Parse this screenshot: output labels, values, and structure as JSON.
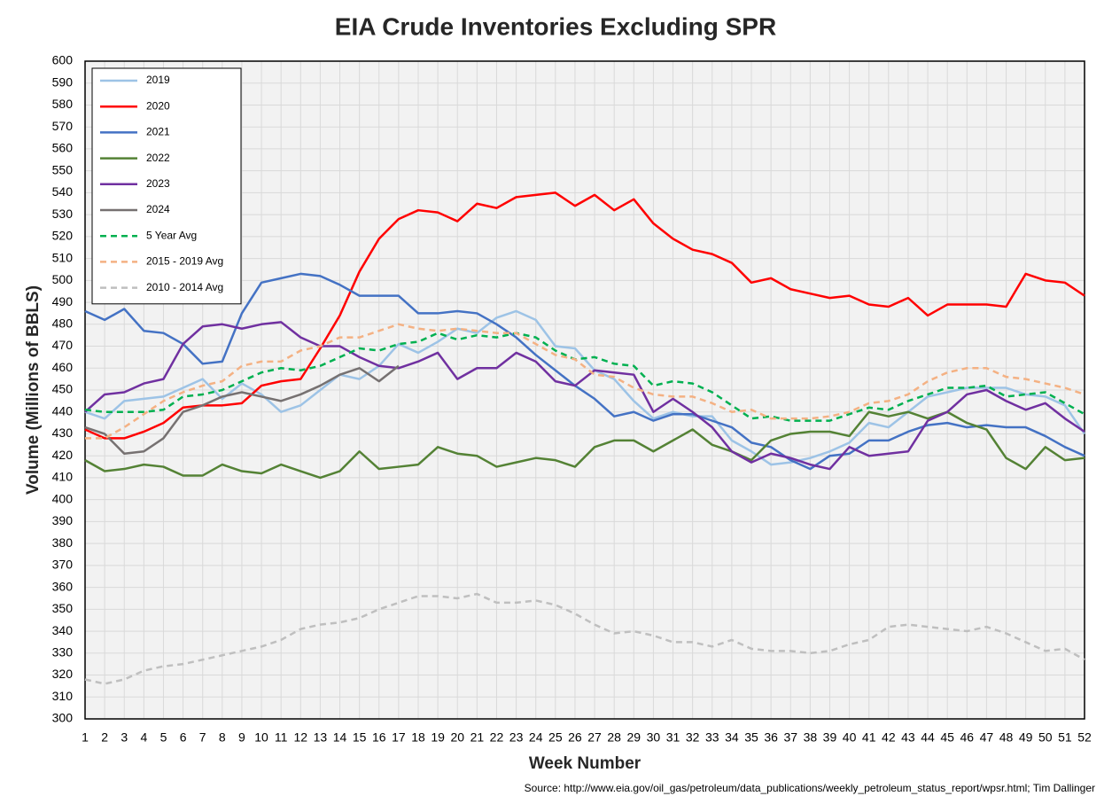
{
  "chart_data": {
    "type": "line",
    "title": "EIA Crude Inventories Excluding SPR",
    "x_label": "Week Number",
    "y_label": "Volume (Millions of BBLS)",
    "source": "Source: http://www.eia.gov/oil_gas/petroleum/data_publications/weekly_petroleum_status_report/wpsr.html; Tim Dallinger",
    "x": [
      1,
      2,
      3,
      4,
      5,
      6,
      7,
      8,
      9,
      10,
      11,
      12,
      13,
      14,
      15,
      16,
      17,
      18,
      19,
      20,
      21,
      22,
      23,
      24,
      25,
      26,
      27,
      28,
      29,
      30,
      31,
      32,
      33,
      34,
      35,
      36,
      37,
      38,
      39,
      40,
      41,
      42,
      43,
      44,
      45,
      46,
      47,
      48,
      49,
      50,
      51,
      52
    ],
    "xlim": [
      1,
      52
    ],
    "xticks": [
      1,
      2,
      3,
      4,
      5,
      6,
      7,
      8,
      9,
      10,
      11,
      12,
      13,
      14,
      15,
      16,
      17,
      18,
      19,
      20,
      21,
      22,
      23,
      24,
      25,
      26,
      27,
      28,
      29,
      30,
      31,
      32,
      33,
      34,
      35,
      36,
      37,
      38,
      39,
      40,
      41,
      42,
      43,
      44,
      45,
      46,
      47,
      48,
      49,
      50,
      51,
      52
    ],
    "ylim": [
      300,
      600
    ],
    "yticks": [
      300,
      310,
      320,
      330,
      340,
      350,
      360,
      370,
      380,
      390,
      400,
      410,
      420,
      430,
      440,
      450,
      460,
      470,
      480,
      490,
      500,
      510,
      520,
      530,
      540,
      550,
      560,
      570,
      580,
      590,
      600
    ],
    "grid": true,
    "legend": "upper left",
    "series": [
      {
        "name": "2019",
        "color": "#9dc3e6",
        "style": "solid",
        "values": [
          440,
          437,
          445,
          446,
          447,
          451,
          455,
          446,
          453,
          448,
          440,
          443,
          450,
          457,
          455,
          461,
          471,
          467,
          472,
          478,
          476,
          483,
          486,
          482,
          470,
          469,
          459,
          455,
          445,
          437,
          440,
          438,
          438,
          427,
          422,
          416,
          417,
          419,
          422,
          426,
          435,
          433,
          440,
          447,
          449,
          451,
          451,
          451,
          448,
          447,
          443,
          430
        ]
      },
      {
        "name": "2020",
        "color": "#ff0000",
        "style": "solid",
        "values": [
          432,
          428,
          428,
          431,
          435,
          442,
          443,
          443,
          444,
          452,
          454,
          455,
          469,
          484,
          504,
          519,
          528,
          532,
          531,
          527,
          535,
          533,
          538,
          539,
          540,
          534,
          539,
          532,
          537,
          526,
          519,
          514,
          512,
          508,
          499,
          501,
          496,
          494,
          492,
          493,
          489,
          488,
          492,
          484,
          489,
          489,
          489,
          488,
          503,
          500,
          499,
          493
        ]
      },
      {
        "name": "2021",
        "color": "#4472c4",
        "style": "solid",
        "values": [
          486,
          482,
          487,
          477,
          476,
          471,
          462,
          463,
          485,
          499,
          501,
          503,
          502,
          498,
          493,
          493,
          493,
          485,
          485,
          486,
          485,
          480,
          474,
          466,
          459,
          452,
          446,
          438,
          440,
          436,
          439,
          439,
          436,
          433,
          426,
          424,
          418,
          414,
          420,
          421,
          427,
          427,
          431,
          434,
          435,
          433,
          434,
          433,
          433,
          429,
          424,
          420
        ]
      },
      {
        "name": "2022",
        "color": "#548235",
        "style": "solid",
        "values": [
          418,
          413,
          414,
          416,
          415,
          411,
          411,
          416,
          413,
          412,
          416,
          413,
          410,
          413,
          422,
          414,
          415,
          416,
          424,
          421,
          420,
          415,
          417,
          419,
          418,
          415,
          424,
          427,
          427,
          422,
          427,
          432,
          425,
          422,
          418,
          427,
          430,
          431,
          431,
          429,
          440,
          438,
          440,
          437,
          440,
          435,
          432,
          419,
          414,
          424,
          418,
          419
        ]
      },
      {
        "name": "2023",
        "color": "#7030a0",
        "style": "solid",
        "values": [
          440,
          448,
          449,
          453,
          455,
          471,
          479,
          480,
          478,
          480,
          481,
          474,
          470,
          470,
          465,
          461,
          460,
          463,
          467,
          455,
          460,
          460,
          467,
          463,
          454,
          452,
          459,
          458,
          457,
          440,
          446,
          440,
          433,
          422,
          417,
          421,
          419,
          416,
          414,
          424,
          420,
          421,
          422,
          436,
          440,
          448,
          450,
          445,
          441,
          444,
          437,
          431
        ]
      },
      {
        "name": "2024",
        "color": "#767171",
        "style": "solid",
        "values": [
          433,
          430,
          421,
          422,
          428,
          440,
          443,
          447,
          449,
          447,
          445,
          448,
          452,
          457,
          460,
          454,
          461,
          null,
          null,
          null,
          null,
          null,
          null,
          null,
          null,
          null,
          null,
          null,
          null,
          null,
          null,
          null,
          null,
          null,
          null,
          null,
          null,
          null,
          null,
          null,
          null,
          null,
          null,
          null,
          null,
          null,
          null,
          null,
          null,
          null,
          null,
          null
        ]
      },
      {
        "name": "5 Year Avg",
        "color": "#00b050",
        "style": "dashed",
        "values": [
          441,
          440,
          440,
          440,
          441,
          447,
          448,
          450,
          454,
          458,
          460,
          459,
          461,
          465,
          469,
          468,
          471,
          472,
          476,
          473,
          475,
          474,
          476,
          474,
          468,
          464,
          465,
          462,
          461,
          452,
          454,
          453,
          449,
          443,
          437,
          438,
          436,
          436,
          436,
          439,
          442,
          441,
          445,
          448,
          451,
          451,
          452,
          447,
          448,
          449,
          444,
          439
        ]
      },
      {
        "name": "2015 - 2019 Avg",
        "color": "#f4b183",
        "style": "dashed",
        "values": [
          428,
          428,
          433,
          439,
          445,
          449,
          452,
          454,
          461,
          463,
          463,
          468,
          470,
          474,
          474,
          477,
          480,
          478,
          477,
          478,
          477,
          476,
          476,
          471,
          466,
          464,
          457,
          456,
          451,
          448,
          447,
          447,
          444,
          440,
          441,
          437,
          437,
          437,
          438,
          440,
          444,
          445,
          448,
          454,
          458,
          460,
          460,
          456,
          455,
          453,
          451,
          448
        ]
      },
      {
        "name": "2010 - 2014 Avg",
        "color": "#bfbfbf",
        "style": "dashed",
        "values": [
          318,
          316,
          318,
          322,
          324,
          325,
          327,
          329,
          331,
          333,
          336,
          341,
          343,
          344,
          346,
          350,
          353,
          356,
          356,
          355,
          357,
          353,
          353,
          354,
          352,
          348,
          343,
          339,
          340,
          338,
          335,
          335,
          333,
          336,
          332,
          331,
          331,
          330,
          331,
          334,
          336,
          342,
          343,
          342,
          341,
          340,
          342,
          339,
          335,
          331,
          332,
          327
        ]
      }
    ]
  }
}
